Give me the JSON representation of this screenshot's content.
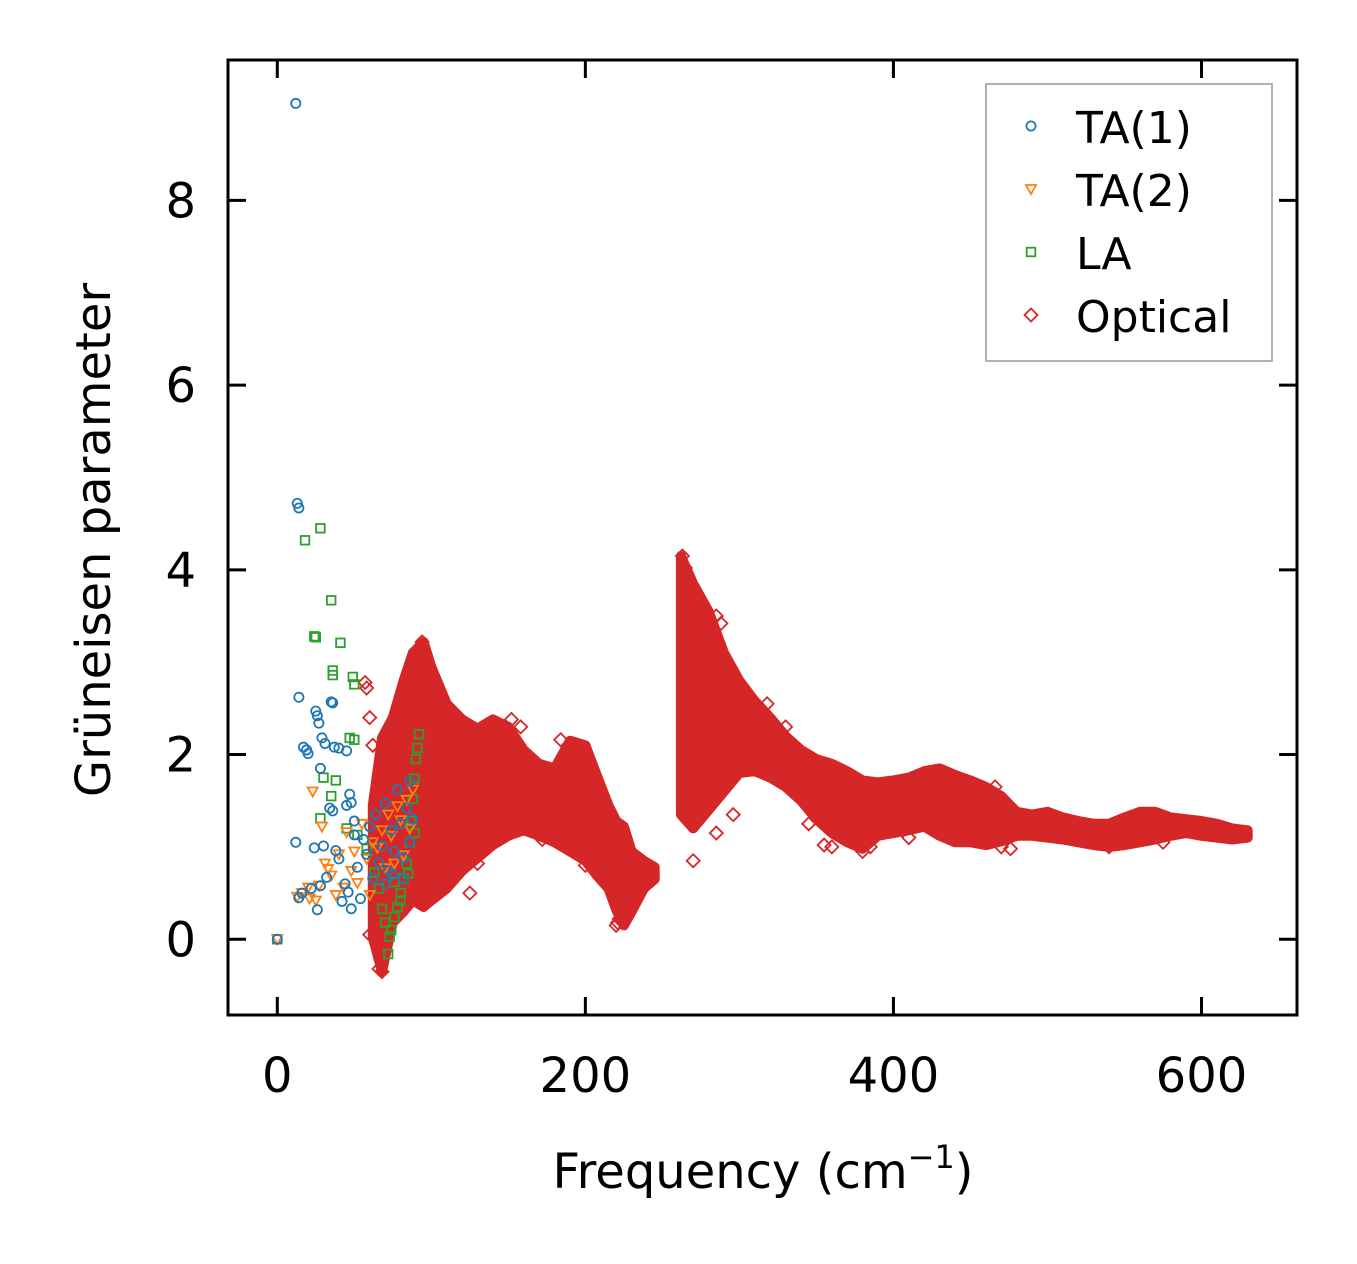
{
  "chart_data": {
    "type": "scatter",
    "title": "",
    "xlabel": "Frequency (cm",
    "xlabel_sup": "−1",
    "xlabel_end": ")",
    "ylabel": "Grüneisen parameter",
    "xlim": [
      -32,
      662
    ],
    "ylim": [
      -0.82,
      9.52
    ],
    "xticks": [
      0,
      200,
      400,
      600
    ],
    "xtick_labels": [
      "0",
      "200",
      "400",
      "600"
    ],
    "yticks": [
      0,
      2,
      4,
      6,
      8
    ],
    "ytick_labels": [
      "0",
      "2",
      "4",
      "6",
      "8"
    ],
    "grid": false,
    "legend_position": "top-right",
    "series": [
      {
        "name": "TA(1)",
        "marker": "circle",
        "color": "#1f77b4",
        "points": [
          [
            0,
            0
          ],
          [
            12,
            9.05
          ],
          [
            13,
            4.72
          ],
          [
            14,
            4.67
          ],
          [
            14,
            2.62
          ],
          [
            17,
            2.08
          ],
          [
            19,
            2.05
          ],
          [
            20,
            2.01
          ],
          [
            25,
            2.47
          ],
          [
            26,
            2.42
          ],
          [
            27,
            2.34
          ],
          [
            29,
            2.18
          ],
          [
            28,
            1.85
          ],
          [
            31,
            2.12
          ],
          [
            35,
            2.57
          ],
          [
            36,
            2.56
          ],
          [
            37,
            2.08
          ],
          [
            40,
            2.07
          ],
          [
            45,
            2.04
          ],
          [
            47,
            1.57
          ],
          [
            48,
            1.48
          ],
          [
            12,
            1.05
          ],
          [
            14,
            0.45
          ],
          [
            16,
            0.5
          ],
          [
            22,
            0.55
          ],
          [
            24,
            0.99
          ],
          [
            26,
            0.32
          ],
          [
            28,
            0.58
          ],
          [
            30,
            1.01
          ],
          [
            32,
            0.67
          ],
          [
            34,
            1.42
          ],
          [
            36,
            1.39
          ],
          [
            38,
            0.96
          ],
          [
            40,
            0.87
          ],
          [
            42,
            0.41
          ],
          [
            44,
            0.6
          ],
          [
            46,
            0.51
          ],
          [
            48,
            0.33
          ],
          [
            50,
            1.13
          ],
          [
            52,
            0.78
          ],
          [
            54,
            0.44
          ],
          [
            56,
            1.08
          ],
          [
            58,
            0.92
          ],
          [
            60,
            1.22
          ],
          [
            62,
            0.66
          ],
          [
            64,
            1.35
          ],
          [
            66,
            0.83
          ],
          [
            68,
            1.01
          ],
          [
            70,
            1.47
          ],
          [
            72,
            0.74
          ],
          [
            74,
            1.18
          ],
          [
            76,
            0.95
          ],
          [
            78,
            1.62
          ],
          [
            80,
            1.25
          ],
          [
            82,
            0.88
          ],
          [
            84,
            1.42
          ],
          [
            86,
            1.71
          ],
          [
            88,
            1.3
          ],
          [
            70,
            0.6
          ],
          [
            75,
            0.7
          ],
          [
            82,
            0.65
          ],
          [
            86,
            1.05
          ],
          [
            45,
            1.45
          ],
          [
            50,
            1.28
          ]
        ]
      },
      {
        "name": "TA(2)",
        "marker": "triangle-down",
        "color": "#ff7f0e",
        "points": [
          [
            0,
            0
          ],
          [
            13,
            0.46
          ],
          [
            16,
            0.5
          ],
          [
            20,
            0.56
          ],
          [
            21,
            0.44
          ],
          [
            23,
            1.6
          ],
          [
            25,
            0.42
          ],
          [
            27,
            0.58
          ],
          [
            29,
            1.22
          ],
          [
            31,
            0.82
          ],
          [
            33,
            0.76
          ],
          [
            35,
            0.69
          ],
          [
            38,
            0.48
          ],
          [
            40,
            0.92
          ],
          [
            43,
            0.56
          ],
          [
            45,
            1.16
          ],
          [
            48,
            0.74
          ],
          [
            50,
            0.95
          ],
          [
            52,
            0.61
          ],
          [
            55,
            1.25
          ],
          [
            58,
            0.87
          ],
          [
            60,
            0.48
          ],
          [
            62,
            1.05
          ],
          [
            65,
            0.99
          ],
          [
            68,
            1.18
          ],
          [
            70,
            0.77
          ],
          [
            72,
            1.35
          ],
          [
            74,
            1.12
          ],
          [
            76,
            0.82
          ],
          [
            78,
            1.44
          ],
          [
            80,
            1.29
          ],
          [
            82,
            0.91
          ],
          [
            84,
            1.51
          ],
          [
            86,
            1.2
          ],
          [
            88,
            1.62
          ]
        ]
      },
      {
        "name": "LA",
        "marker": "square",
        "color": "#2ca02c",
        "points": [
          [
            0,
            0
          ],
          [
            18,
            4.32
          ],
          [
            28,
            4.45
          ],
          [
            35,
            3.67
          ],
          [
            24,
            3.28
          ],
          [
            25,
            3.27
          ],
          [
            41,
            3.21
          ],
          [
            36,
            2.91
          ],
          [
            36,
            2.86
          ],
          [
            49,
            2.84
          ],
          [
            50,
            2.76
          ],
          [
            47,
            2.18
          ],
          [
            50,
            2.16
          ],
          [
            30,
            1.75
          ],
          [
            38,
            1.72
          ],
          [
            35,
            1.55
          ],
          [
            28,
            1.31
          ],
          [
            45,
            1.2
          ],
          [
            52,
            1.13
          ],
          [
            58,
            0.98
          ],
          [
            63,
            0.72
          ],
          [
            66,
            0.55
          ],
          [
            68,
            0.33
          ],
          [
            70,
            0.18
          ],
          [
            72,
            -0.16
          ],
          [
            73,
            0.03
          ],
          [
            74,
            0.1
          ],
          [
            76,
            0.24
          ],
          [
            78,
            0.35
          ],
          [
            80,
            0.5
          ],
          [
            82,
            0.66
          ],
          [
            84,
            0.82
          ],
          [
            86,
            1.05
          ],
          [
            87,
            1.28
          ],
          [
            88,
            1.52
          ],
          [
            89,
            1.74
          ],
          [
            90,
            1.95
          ],
          [
            91,
            2.07
          ],
          [
            92,
            2.22
          ],
          [
            89,
            1.15
          ],
          [
            85,
            0.71
          ],
          [
            80,
            0.42
          ],
          [
            76,
            0.62
          ]
        ]
      },
      {
        "name": "Optical",
        "marker": "diamond",
        "color": "#d62728",
        "bands": [
          [
            62,
            0.02,
            1.45
          ],
          [
            68,
            -0.35,
            2.18
          ],
          [
            75,
            0.18,
            2.4
          ],
          [
            82,
            0.3,
            2.8
          ],
          [
            88,
            0.42,
            3.1
          ],
          [
            95,
            0.35,
            3.22
          ],
          [
            100,
            0.42,
            2.95
          ],
          [
            110,
            0.55,
            2.55
          ],
          [
            120,
            0.74,
            2.38
          ],
          [
            130,
            0.88,
            2.28
          ],
          [
            140,
            1.02,
            2.38
          ],
          [
            150,
            1.12,
            2.3
          ],
          [
            160,
            1.18,
            2.05
          ],
          [
            170,
            1.12,
            1.9
          ],
          [
            180,
            1.05,
            1.85
          ],
          [
            190,
            0.95,
            2.15
          ],
          [
            200,
            0.85,
            2.1
          ],
          [
            208,
            0.68,
            1.75
          ],
          [
            215,
            0.55,
            1.45
          ],
          [
            220,
            0.32,
            1.28
          ],
          [
            225,
            0.15,
            1.22
          ],
          [
            230,
            0.3,
            0.95
          ],
          [
            238,
            0.55,
            0.85
          ],
          [
            245,
            0.65,
            0.78
          ],
          [
            262,
            1.35,
            4.15
          ],
          [
            270,
            1.2,
            3.85
          ],
          [
            280,
            1.4,
            3.55
          ],
          [
            290,
            1.6,
            3.1
          ],
          [
            300,
            1.8,
            2.8
          ],
          [
            310,
            1.82,
            2.58
          ],
          [
            320,
            1.75,
            2.4
          ],
          [
            330,
            1.65,
            2.2
          ],
          [
            340,
            1.5,
            2.05
          ],
          [
            350,
            1.3,
            1.95
          ],
          [
            360,
            1.15,
            1.9
          ],
          [
            370,
            1.05,
            1.82
          ],
          [
            380,
            0.98,
            1.72
          ],
          [
            390,
            1.12,
            1.7
          ],
          [
            400,
            1.15,
            1.72
          ],
          [
            410,
            1.18,
            1.75
          ],
          [
            420,
            1.22,
            1.82
          ],
          [
            430,
            1.12,
            1.85
          ],
          [
            440,
            1.05,
            1.78
          ],
          [
            450,
            1.05,
            1.72
          ],
          [
            460,
            1.02,
            1.65
          ],
          [
            470,
            1.06,
            1.55
          ],
          [
            480,
            1.12,
            1.38
          ],
          [
            490,
            1.12,
            1.35
          ],
          [
            500,
            1.1,
            1.38
          ],
          [
            510,
            1.08,
            1.32
          ],
          [
            520,
            1.05,
            1.28
          ],
          [
            530,
            1.02,
            1.25
          ],
          [
            540,
            1.0,
            1.25
          ],
          [
            550,
            1.02,
            1.32
          ],
          [
            560,
            1.05,
            1.38
          ],
          [
            570,
            1.08,
            1.38
          ],
          [
            580,
            1.12,
            1.32
          ],
          [
            590,
            1.15,
            1.3
          ],
          [
            600,
            1.12,
            1.28
          ],
          [
            610,
            1.1,
            1.25
          ],
          [
            620,
            1.08,
            1.2
          ],
          [
            630,
            1.1,
            1.18
          ]
        ],
        "points": [
          [
            94,
            3.22
          ],
          [
            93,
            3.05
          ],
          [
            96,
            2.9
          ],
          [
            100,
            2.85
          ],
          [
            68,
            -0.35
          ],
          [
            66,
            -0.32
          ],
          [
            60,
            0.05
          ],
          [
            57,
            2.78
          ],
          [
            58,
            2.72
          ],
          [
            60,
            2.4
          ],
          [
            62,
            2.1
          ],
          [
            263,
            4.15
          ],
          [
            265,
            4.02
          ],
          [
            270,
            3.75
          ],
          [
            272,
            3.62
          ],
          [
            285,
            3.5
          ],
          [
            288,
            3.42
          ],
          [
            297,
            2.68
          ],
          [
            300,
            2.65
          ],
          [
            318,
            2.55
          ],
          [
            330,
            2.3
          ],
          [
            270,
            0.85
          ],
          [
            285,
            1.15
          ],
          [
            296,
            1.35
          ],
          [
            345,
            1.25
          ],
          [
            355,
            1.02
          ],
          [
            360,
            1.0
          ],
          [
            380,
            0.95
          ],
          [
            385,
            1.0
          ],
          [
            410,
            1.1
          ],
          [
            466,
            1.65
          ],
          [
            470,
            1.0
          ],
          [
            476,
            0.98
          ],
          [
            540,
            1.0
          ],
          [
            555,
            1.08
          ],
          [
            575,
            1.05
          ],
          [
            152,
            2.38
          ],
          [
            158,
            2.3
          ],
          [
            184,
            2.16
          ],
          [
            172,
            1.08
          ],
          [
            200,
            0.8
          ],
          [
            220,
            0.15
          ],
          [
            221,
            0.18
          ],
          [
            222,
            0.22
          ],
          [
            109,
            2.35
          ],
          [
            112,
            2.43
          ],
          [
            125,
            0.5
          ],
          [
            130,
            0.82
          ],
          [
            290,
            1.75
          ]
        ]
      }
    ]
  }
}
